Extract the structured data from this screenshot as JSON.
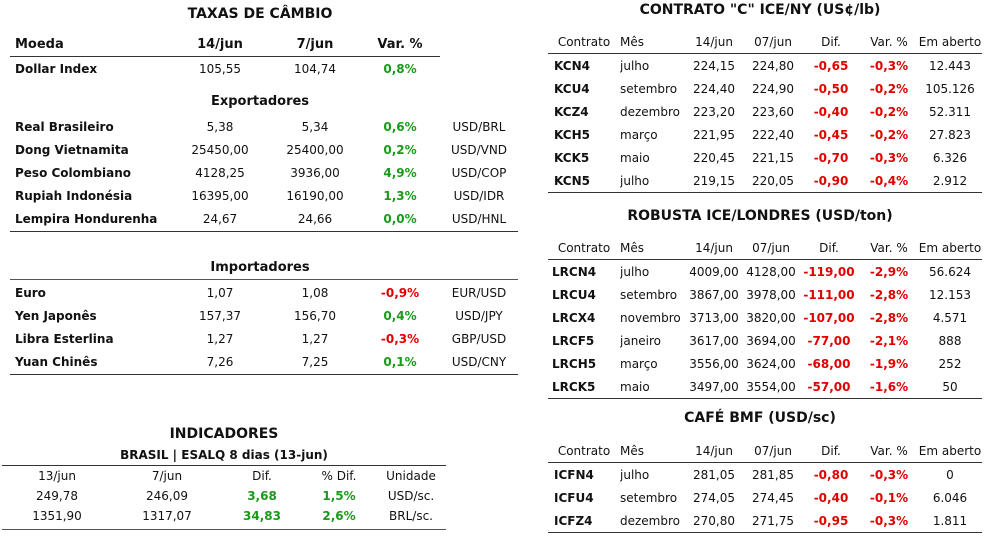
{
  "fx": {
    "title": "TAXAS DE CÂMBIO",
    "headers": [
      "Moeda",
      "14/jun",
      "7/jun",
      "Var. %"
    ],
    "dollar_index": {
      "name": "Dollar Index",
      "v1": "105,55",
      "v2": "104,74",
      "var": "0,8%"
    },
    "exporters_title": "Exportadores",
    "exporters": [
      {
        "name": "Real Brasileiro",
        "v1": "5,38",
        "v2": "5,34",
        "var": "0,6%",
        "pair": "USD/BRL"
      },
      {
        "name": "Dong Vietnamita",
        "v1": "25450,00",
        "v2": "25400,00",
        "var": "0,2%",
        "pair": "USD/VND"
      },
      {
        "name": "Peso Colombiano",
        "v1": "4128,25",
        "v2": "3936,00",
        "var": "4,9%",
        "pair": "USD/COP"
      },
      {
        "name": "Rupiah Indonésia",
        "v1": "16395,00",
        "v2": "16190,00",
        "var": "1,3%",
        "pair": "USD/IDR"
      },
      {
        "name": "Lempira Hondurenha",
        "v1": "24,67",
        "v2": "24,66",
        "var": "0,0%",
        "pair": "USD/HNL"
      }
    ],
    "importers_title": "Importadores",
    "importers": [
      {
        "name": "Euro",
        "v1": "1,07",
        "v2": "1,08",
        "var": "-0,9%",
        "pair": "EUR/USD"
      },
      {
        "name": "Yen Japonês",
        "v1": "157,37",
        "v2": "156,70",
        "var": "0,4%",
        "pair": "USD/JPY"
      },
      {
        "name": "Libra Esterlina",
        "v1": "1,27",
        "v2": "1,27",
        "var": "-0,3%",
        "pair": "GBP/USD"
      },
      {
        "name": "Yuan Chinês",
        "v1": "7,26",
        "v2": "7,25",
        "var": "0,1%",
        "pair": "USD/CNY"
      }
    ]
  },
  "indicators": {
    "title": "INDICADORES",
    "subtitle": "BRASIL | ESALQ 8 dias (13-jun)",
    "headers": [
      "13/jun",
      "7/jun",
      "Dif.",
      "% Dif.",
      "Unidade"
    ],
    "rows": [
      [
        "249,78",
        "246,09",
        "3,68",
        "1,5%",
        "USD/sc."
      ],
      [
        "1351,90",
        "1317,07",
        "34,83",
        "2,6%",
        "BRL/sc."
      ]
    ]
  },
  "ny": {
    "title": "CONTRATO \"C\" ICE/NY (US¢/lb)",
    "headers": [
      "Contrato",
      "Mês",
      "14/jun",
      "07/jun",
      "Dif.",
      "Var. %",
      "Em aberto"
    ],
    "rows": [
      [
        "KCN4",
        "julho",
        "224,15",
        "224,80",
        "-0,65",
        "-0,3%",
        "12.443"
      ],
      [
        "KCU4",
        "setembro",
        "224,40",
        "224,90",
        "-0,50",
        "-0,2%",
        "105.126"
      ],
      [
        "KCZ4",
        "dezembro",
        "223,20",
        "223,60",
        "-0,40",
        "-0,2%",
        "52.311"
      ],
      [
        "KCH5",
        "março",
        "221,95",
        "222,40",
        "-0,45",
        "-0,2%",
        "27.823"
      ],
      [
        "KCK5",
        "maio",
        "220,45",
        "221,15",
        "-0,70",
        "-0,3%",
        "6.326"
      ],
      [
        "KCN5",
        "julho",
        "219,15",
        "220,05",
        "-0,90",
        "-0,4%",
        "2.912"
      ]
    ]
  },
  "london": {
    "title": "ROBUSTA ICE/LONDRES (USD/ton)",
    "headers": [
      "Contrato",
      "Mês",
      "14/jun",
      "07/jun",
      "Dif.",
      "Var. %",
      "Em aberto"
    ],
    "rows": [
      [
        "LRCN4",
        "julho",
        "4009,00",
        "4128,00",
        "-119,00",
        "-2,9%",
        "56.624"
      ],
      [
        "LRCU4",
        "setembro",
        "3867,00",
        "3978,00",
        "-111,00",
        "-2,8%",
        "12.153"
      ],
      [
        "LRCX4",
        "novembro",
        "3713,00",
        "3820,00",
        "-107,00",
        "-2,8%",
        "4.571"
      ],
      [
        "LRCF5",
        "janeiro",
        "3617,00",
        "3694,00",
        "-77,00",
        "-2,1%",
        "888"
      ],
      [
        "LRCH5",
        "março",
        "3556,00",
        "3624,00",
        "-68,00",
        "-1,9%",
        "252"
      ],
      [
        "LRCK5",
        "maio",
        "3497,00",
        "3554,00",
        "-57,00",
        "-1,6%",
        "50"
      ]
    ]
  },
  "bmf": {
    "title": "CAFÉ BMF (USD/sc)",
    "headers": [
      "Contrato",
      "Mês",
      "14/jun",
      "07/jun",
      "Dif.",
      "Var. %",
      "Em aberto"
    ],
    "rows": [
      [
        "ICFN4",
        "julho",
        "281,05",
        "281,85",
        "-0,80",
        "-0,3%",
        "0"
      ],
      [
        "ICFU4",
        "setembro",
        "274,05",
        "274,45",
        "-0,40",
        "-0,1%",
        "6.046"
      ],
      [
        "ICFZ4",
        "dezembro",
        "270,80",
        "271,75",
        "-0,95",
        "-0,3%",
        "1.811"
      ]
    ]
  },
  "colors": {
    "positive": "#1a9a1a",
    "negative": "#e00000"
  }
}
